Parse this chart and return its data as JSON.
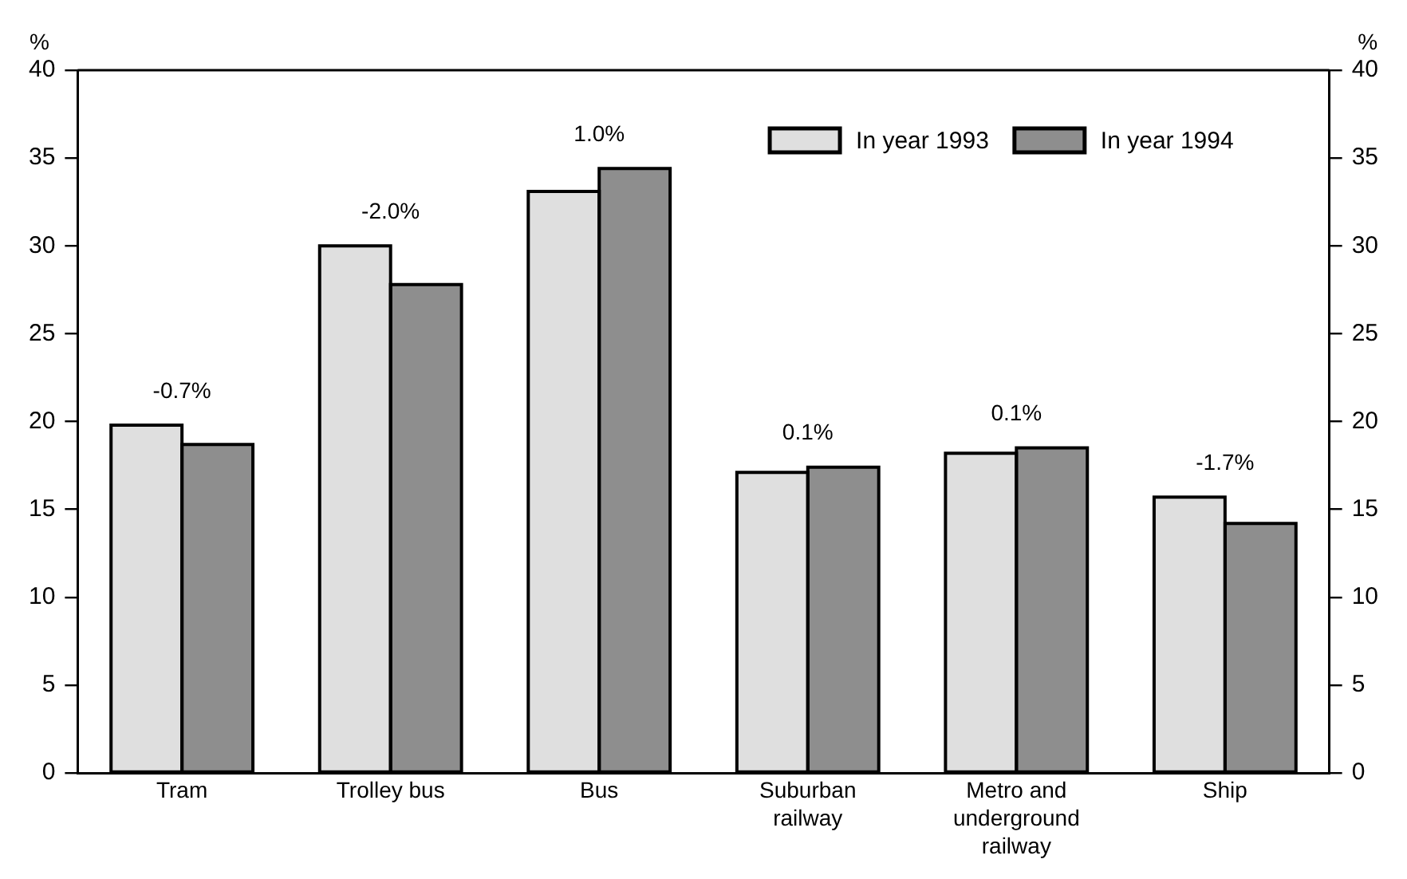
{
  "chart_data": {
    "type": "bar",
    "ylabel": "%",
    "y2label": "%",
    "categories": [
      "Tram",
      "Trolley bus",
      "Bus",
      "Suburban railway",
      "Metro and underground railway",
      "Ship"
    ],
    "series": [
      {
        "name": "In year 1993",
        "color": "#dfdfdf",
        "values": [
          19.8,
          30.0,
          33.1,
          17.1,
          18.2,
          15.7
        ]
      },
      {
        "name": "In year 1994",
        "color": "#8e8e8e",
        "values": [
          18.7,
          27.8,
          34.4,
          17.4,
          18.5,
          14.2
        ]
      }
    ],
    "annotations": [
      {
        "text": "-0.7%",
        "x": "Tram",
        "y": 19.8
      },
      {
        "text": "-2.0%",
        "x": "Trolley bus",
        "y": 30.0
      },
      {
        "text": "1.0%",
        "x": "Bus",
        "y": 34.4
      },
      {
        "text": "0.1%",
        "x": "Suburban railway",
        "y": 17.4
      },
      {
        "text": "0.1%",
        "x": "Metro and underground railway",
        "y": 18.5
      },
      {
        "text": "-1.7%",
        "x": "Ship",
        "y": 15.7
      }
    ],
    "ylim": [
      0,
      40
    ],
    "yticks": [
      0,
      5,
      10,
      15,
      20,
      25,
      30,
      35,
      40
    ],
    "y2lim": [
      0,
      40
    ],
    "y2ticks": [
      0,
      5,
      10,
      15,
      20,
      25,
      30,
      35,
      40
    ],
    "grid": false,
    "legend": "top right"
  }
}
